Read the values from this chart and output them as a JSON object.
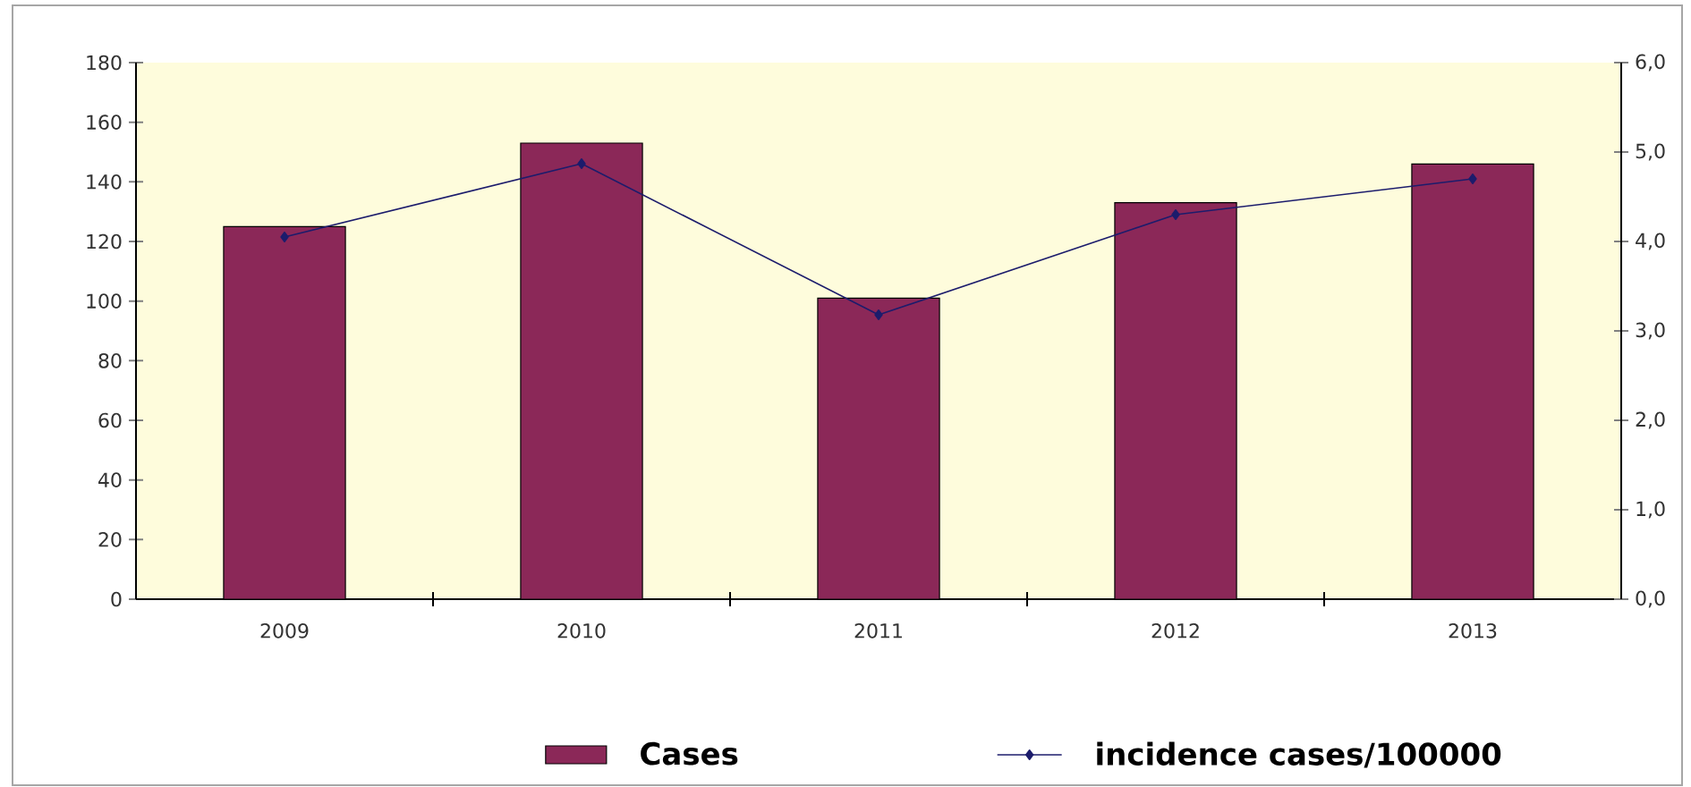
{
  "chart_data": {
    "type": "bar",
    "categories": [
      "2009",
      "2010",
      "2011",
      "2012",
      "2013"
    ],
    "series": [
      {
        "name": "Cases",
        "color": "#8b2858",
        "values": [
          125,
          153,
          101,
          133,
          146
        ]
      },
      {
        "name": "incidence cases/100000",
        "type": "line",
        "axis": "y2",
        "color": "#1c1c6c",
        "values": [
          4.05,
          4.87,
          3.18,
          4.3,
          4.7
        ]
      }
    ],
    "ylim": [
      0,
      180
    ],
    "yticks": [
      0,
      20,
      40,
      60,
      80,
      100,
      120,
      140,
      160,
      180
    ],
    "y2lim": [
      0,
      6
    ],
    "y2ticks": [
      {
        "value": 0,
        "label": "0,0"
      },
      {
        "value": 1,
        "label": "1,0"
      },
      {
        "value": 2,
        "label": "2,0"
      },
      {
        "value": 3,
        "label": "3,0"
      },
      {
        "value": 4,
        "label": "4,0"
      },
      {
        "value": 5,
        "label": "5,0"
      },
      {
        "value": 6,
        "label": "6,0"
      }
    ],
    "legend": "bottom",
    "marker": "diamond",
    "line_style": "solid"
  }
}
